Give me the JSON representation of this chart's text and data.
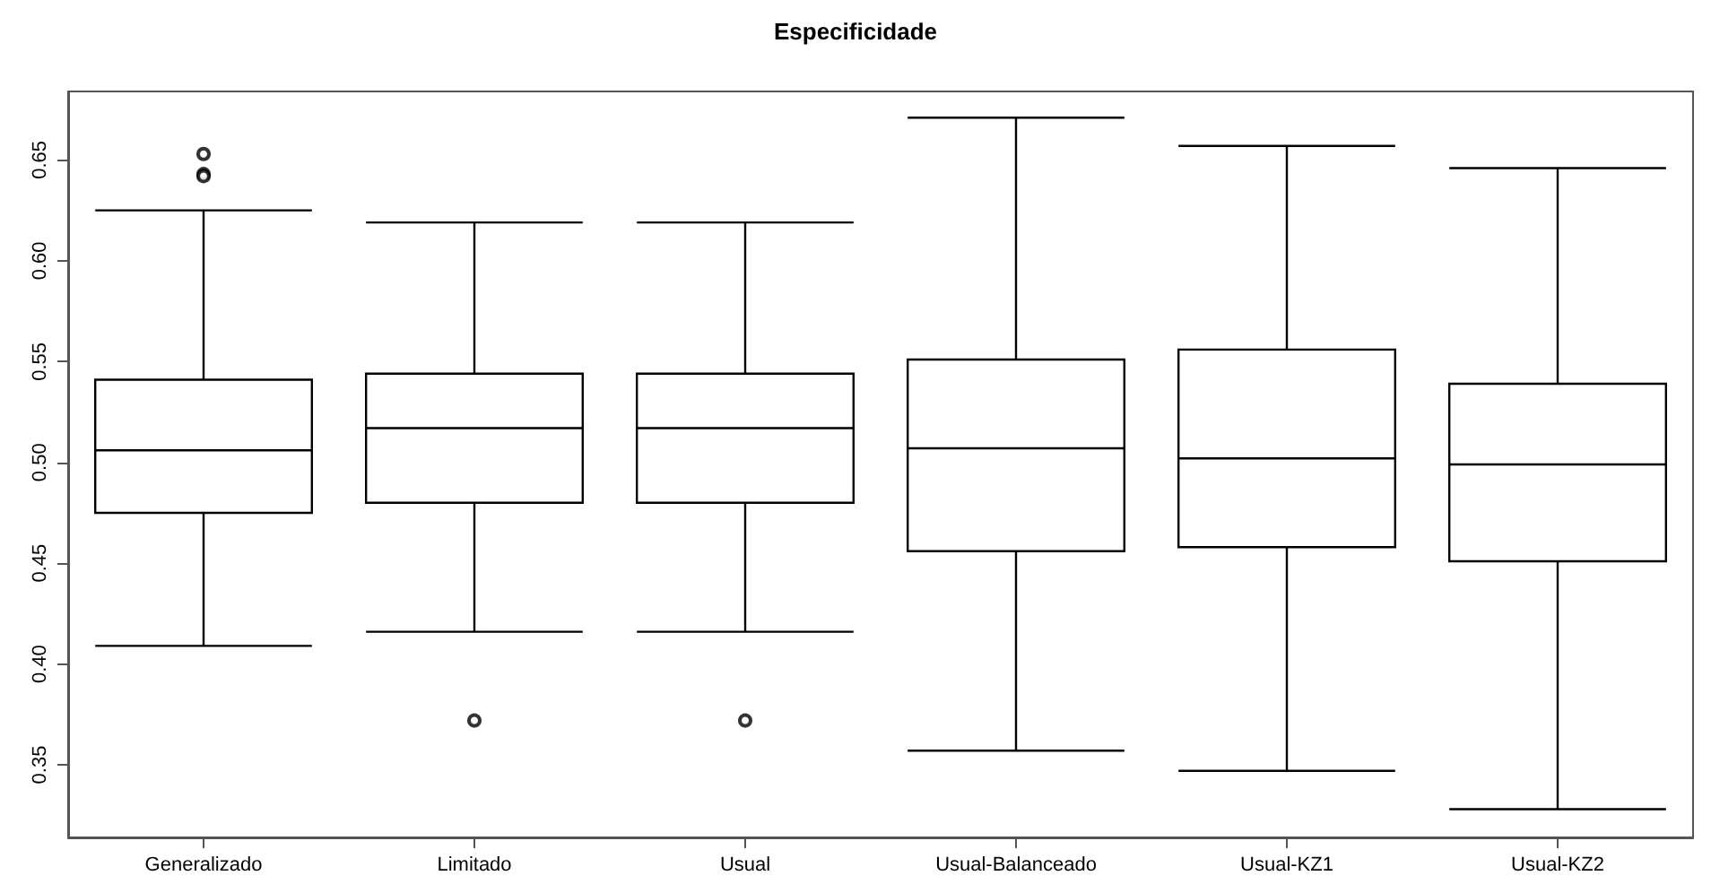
{
  "chart_data": {
    "type": "box",
    "title": "Especificidade",
    "categories": [
      "Generalizado",
      "Limitado",
      "Usual",
      "Usual-Balanceado",
      "Usual-KZ1",
      "Usual-KZ2"
    ],
    "boxes": [
      {
        "low": 0.409,
        "q1": 0.475,
        "median": 0.506,
        "q3": 0.541,
        "high": 0.625,
        "outliers": [
          0.653,
          0.643,
          0.642
        ]
      },
      {
        "low": 0.416,
        "q1": 0.48,
        "median": 0.517,
        "q3": 0.544,
        "high": 0.619,
        "outliers": [
          0.372
        ]
      },
      {
        "low": 0.416,
        "q1": 0.48,
        "median": 0.517,
        "q3": 0.544,
        "high": 0.619,
        "outliers": [
          0.372
        ]
      },
      {
        "low": 0.357,
        "q1": 0.456,
        "median": 0.507,
        "q3": 0.551,
        "high": 0.671
      },
      {
        "low": 0.347,
        "q1": 0.458,
        "median": 0.502,
        "q3": 0.556,
        "high": 0.657
      },
      {
        "low": 0.328,
        "q1": 0.451,
        "median": 0.499,
        "q3": 0.539,
        "high": 0.646
      }
    ],
    "color": "#000000",
    "ylim": [
      0.314,
      0.684
    ],
    "yticks": [
      0.35,
      {
        "value": 0.4,
        "label": "0.40"
      },
      0.45,
      {
        "value": 0.5,
        "label": "0.50"
      },
      0.55,
      {
        "value": 0.6,
        "label": "0.60"
      },
      0.65
    ],
    "grid": false,
    "legend": false
  }
}
